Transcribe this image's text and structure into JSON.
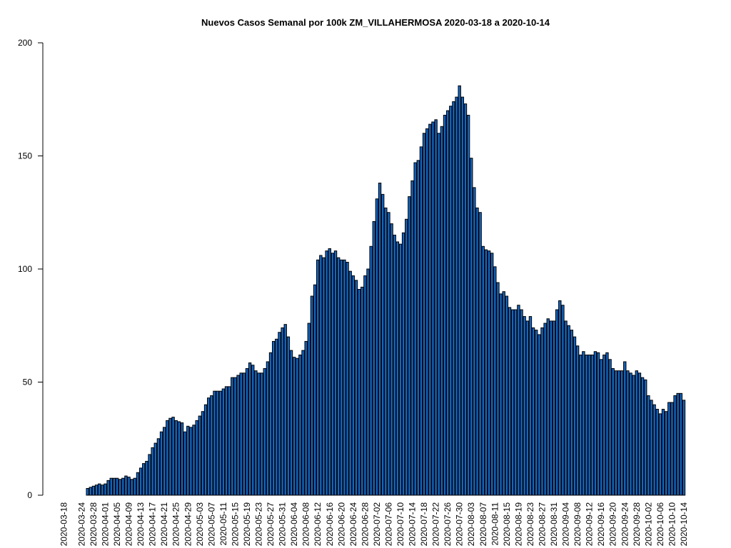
{
  "chart_data": {
    "type": "bar",
    "title": "Nuevos Casos Semanal por 100k ZM_VILLAHERMOSA 2020-03-18 a 2020-10-14",
    "color": "#1565c0",
    "ylim": [
      0,
      200
    ],
    "yticks": [
      0,
      50,
      100,
      150,
      200
    ],
    "categories": [
      "2020-03-18",
      null,
      null,
      null,
      null,
      null,
      "2020-03-24",
      null,
      null,
      null,
      "2020-03-28",
      null,
      null,
      null,
      "2020-04-01",
      null,
      null,
      null,
      "2020-04-05",
      null,
      null,
      null,
      "2020-04-09",
      null,
      null,
      null,
      "2020-04-13",
      null,
      null,
      null,
      "2020-04-17",
      null,
      null,
      null,
      "2020-04-21",
      null,
      null,
      null,
      "2020-04-25",
      null,
      null,
      null,
      "2020-04-29",
      null,
      null,
      null,
      "2020-05-03",
      null,
      null,
      null,
      "2020-05-07",
      null,
      null,
      null,
      "2020-05-11",
      null,
      null,
      null,
      "2020-05-15",
      null,
      null,
      null,
      "2020-05-19",
      null,
      null,
      null,
      "2020-05-23",
      null,
      null,
      null,
      "2020-05-27",
      null,
      null,
      null,
      "2020-05-31",
      null,
      null,
      null,
      "2020-06-04",
      null,
      null,
      null,
      "2020-06-08",
      null,
      null,
      null,
      "2020-06-12",
      null,
      null,
      null,
      "2020-06-16",
      null,
      null,
      null,
      "2020-06-20",
      null,
      null,
      null,
      "2020-06-24",
      null,
      null,
      null,
      "2020-06-28",
      null,
      null,
      null,
      "2020-07-02",
      null,
      null,
      null,
      "2020-07-06",
      null,
      null,
      null,
      "2020-07-10",
      null,
      null,
      null,
      "2020-07-14",
      null,
      null,
      null,
      "2020-07-18",
      null,
      null,
      null,
      "2020-07-22",
      null,
      null,
      null,
      "2020-07-26",
      null,
      null,
      null,
      "2020-07-30",
      null,
      null,
      null,
      "2020-08-03",
      null,
      null,
      null,
      "2020-08-07",
      null,
      null,
      null,
      "2020-08-11",
      null,
      null,
      null,
      "2020-08-15",
      null,
      null,
      null,
      "2020-08-19",
      null,
      null,
      null,
      "2020-08-23",
      null,
      null,
      null,
      "2020-08-27",
      null,
      null,
      null,
      "2020-08-31",
      null,
      null,
      null,
      "2020-09-04",
      null,
      null,
      null,
      "2020-09-08",
      null,
      null,
      null,
      "2020-09-12",
      null,
      null,
      null,
      "2020-09-16",
      null,
      null,
      null,
      "2020-09-20",
      null,
      null,
      null,
      "2020-09-24",
      null,
      null,
      null,
      "2020-09-28",
      null,
      null,
      null,
      "2020-10-02",
      null,
      null,
      null,
      "2020-10-06",
      null,
      null,
      null,
      "2020-10-10",
      null,
      null,
      null,
      "2020-10-14"
    ],
    "values": [
      0,
      0,
      0,
      0,
      0,
      0,
      0,
      0,
      3,
      3.5,
      4,
      4.5,
      5,
      4.5,
      5,
      6.5,
      7.5,
      7.5,
      7.5,
      7,
      7.5,
      8.5,
      8,
      7,
      7.5,
      10,
      12,
      14,
      15,
      18,
      21,
      23,
      25,
      28,
      30,
      33,
      34,
      34.5,
      33,
      32.5,
      32,
      28,
      30.5,
      30,
      31,
      33,
      35,
      37,
      40,
      43,
      44,
      46,
      46,
      46,
      47,
      48,
      48,
      52,
      52,
      53,
      54,
      54,
      56,
      58.5,
      57.5,
      55,
      54,
      54,
      56,
      59,
      63,
      68,
      69,
      72,
      74,
      75.5,
      70,
      64,
      61,
      60.5,
      62,
      64,
      68,
      76,
      88,
      93,
      104,
      106,
      105,
      108,
      109,
      107,
      108,
      105,
      104,
      104,
      103,
      99,
      97,
      95,
      91,
      92,
      97,
      100,
      110,
      121,
      131,
      138,
      133,
      127,
      125,
      120,
      115,
      112,
      111,
      116,
      122,
      132,
      139,
      147,
      148,
      154,
      160,
      162,
      164,
      165,
      166,
      160,
      163,
      168,
      170,
      172,
      174,
      176,
      181,
      176,
      173,
      168,
      149,
      136,
      127,
      125,
      110,
      108.5,
      108,
      107,
      101,
      94,
      89,
      90,
      88,
      83,
      82,
      82,
      84,
      82,
      79,
      77,
      79,
      74,
      73,
      71,
      74,
      76,
      78,
      77,
      77,
      82,
      86,
      84,
      77,
      75,
      73,
      70,
      66,
      62,
      63.5,
      62,
      62,
      62,
      63.5,
      63,
      60,
      62,
      63,
      60,
      56,
      55,
      55,
      55,
      59,
      55,
      54,
      53,
      55,
      54,
      52,
      51,
      44,
      42,
      40,
      38,
      36,
      38,
      37,
      41,
      41,
      44,
      45,
      45,
      42
    ]
  }
}
